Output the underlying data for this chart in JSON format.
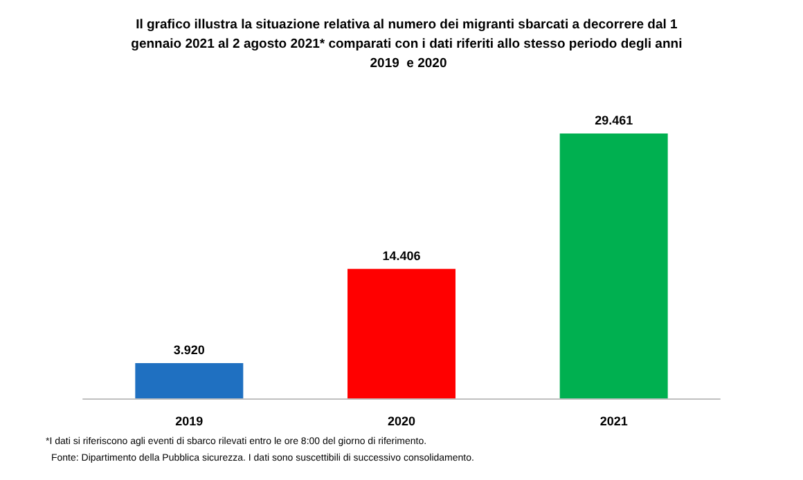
{
  "chart_data": {
    "type": "bar",
    "title": "Il grafico illustra la situazione relativa al numero dei migranti sbarcati a decorrere dal 1 gennaio 2021 al 2 agosto 2021* comparati con i dati riferiti allo stesso periodo degli anni 2019  e 2020",
    "categories": [
      "2019",
      "2020",
      "2021"
    ],
    "values": [
      3920,
      14406,
      29461
    ],
    "colors": [
      "#1f70c1",
      "#ff0000",
      "#00b050"
    ],
    "value_labels": [
      "3.920",
      "14.406",
      "29.461"
    ],
    "annotations": [
      "*I dati si riferiscono agli eventi di sbarco rilevati entro le ore 8:00 del giorno di riferimento.",
      "Fonte: Dipartimento della Pubblica sicurezza. I dati sono suscettibili di successivo consolidamento."
    ],
    "orientation": "vertical"
  }
}
